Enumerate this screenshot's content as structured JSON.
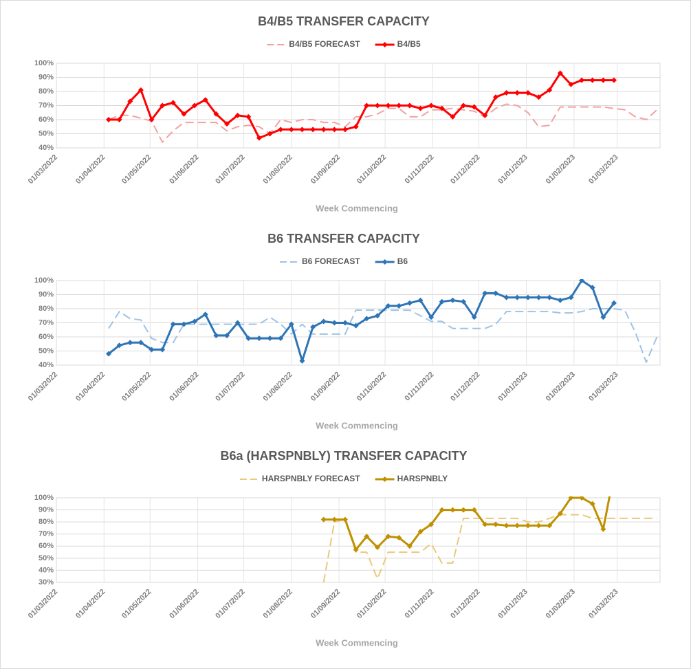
{
  "chart_data": [
    {
      "type": "line",
      "title": "B4/B5 TRANSFER CAPACITY",
      "xlabel": "Week Commencing",
      "x": [
        "2022-04-04",
        "2022-04-11",
        "2022-04-18",
        "2022-04-25",
        "2022-05-02",
        "2022-05-09",
        "2022-05-16",
        "2022-05-23",
        "2022-05-30",
        "2022-06-06",
        "2022-06-13",
        "2022-06-20",
        "2022-06-27",
        "2022-07-04",
        "2022-07-11",
        "2022-07-18",
        "2022-07-25",
        "2022-08-01",
        "2022-08-08",
        "2022-08-15",
        "2022-08-22",
        "2022-08-29",
        "2022-09-05",
        "2022-09-12",
        "2022-09-19",
        "2022-09-26",
        "2022-10-03",
        "2022-10-10",
        "2022-10-17",
        "2022-10-24",
        "2022-10-31",
        "2022-11-07",
        "2022-11-14",
        "2022-11-21",
        "2022-11-28",
        "2022-12-05",
        "2022-12-12",
        "2022-12-19",
        "2022-12-26",
        "2023-01-02",
        "2023-01-09",
        "2023-01-16",
        "2023-01-23",
        "2023-01-30",
        "2023-02-06",
        "2023-02-13",
        "2023-02-20",
        "2023-02-27",
        "2023-03-06",
        "2023-03-13",
        "2023-03-20",
        "2023-03-27"
      ],
      "xlim": [
        "2022-03-01",
        "2023-03-29"
      ],
      "xticks": [
        {
          "value": "2022-03-01",
          "label": "01/03/2022"
        },
        {
          "value": "2022-04-01",
          "label": "01/04/2022"
        },
        {
          "value": "2022-05-01",
          "label": "01/05/2022"
        },
        {
          "value": "2022-06-01",
          "label": "01/06/2022"
        },
        {
          "value": "2022-07-01",
          "label": "01/07/2022"
        },
        {
          "value": "2022-08-01",
          "label": "01/08/2022"
        },
        {
          "value": "2022-09-01",
          "label": "01/09/2022"
        },
        {
          "value": "2022-10-01",
          "label": "01/10/2022"
        },
        {
          "value": "2022-11-01",
          "label": "01/11/2022"
        },
        {
          "value": "2022-12-01",
          "label": "01/12/2022"
        },
        {
          "value": "2023-01-01",
          "label": "01/01/2023"
        },
        {
          "value": "2023-02-01",
          "label": "01/02/2023"
        },
        {
          "value": "2023-03-01",
          "label": "01/03/2023"
        }
      ],
      "ylim": [
        40,
        100
      ],
      "yticks": [
        {
          "value": 40,
          "label": "40%"
        },
        {
          "value": 50,
          "label": "50%"
        },
        {
          "value": 60,
          "label": "60%"
        },
        {
          "value": 70,
          "label": "70%"
        },
        {
          "value": 80,
          "label": "80%"
        },
        {
          "value": 90,
          "label": "90%"
        },
        {
          "value": 100,
          "label": "100%"
        }
      ],
      "grid": true,
      "legend": "top",
      "series": [
        {
          "name": "B4/B5 FORECAST",
          "color": "#f4a0a0",
          "dashed": true,
          "values": [
            60,
            63,
            63,
            61,
            59,
            44,
            52,
            58,
            58,
            58,
            58,
            52,
            55,
            56,
            55,
            50,
            60,
            58,
            60,
            60,
            58,
            58,
            55,
            62,
            62,
            64,
            68,
            68,
            62,
            62,
            67,
            67,
            68,
            67,
            66,
            62,
            68,
            71,
            70,
            65,
            55,
            56,
            69,
            69,
            69,
            69,
            69,
            68,
            67,
            62,
            60,
            67
          ]
        },
        {
          "name": "B4/B5",
          "color": "#ff0000",
          "marker": "diamond",
          "values": [
            60,
            60,
            73,
            81,
            60,
            70,
            72,
            64,
            70,
            74,
            64,
            57,
            63,
            62,
            47,
            50,
            53,
            53,
            53,
            53,
            53,
            53,
            53,
            55,
            70,
            70,
            70,
            70,
            70,
            68,
            70,
            68,
            62,
            70,
            69,
            63,
            76,
            79,
            79,
            79,
            76,
            81,
            93,
            85,
            88,
            88,
            88,
            88,
            null,
            null,
            null,
            null
          ]
        }
      ]
    },
    {
      "type": "line",
      "title": "B6 TRANSFER CAPACITY",
      "xlabel": "Week Commencing",
      "x": [
        "2022-04-04",
        "2022-04-11",
        "2022-04-18",
        "2022-04-25",
        "2022-05-02",
        "2022-05-09",
        "2022-05-16",
        "2022-05-23",
        "2022-05-30",
        "2022-06-06",
        "2022-06-13",
        "2022-06-20",
        "2022-06-27",
        "2022-07-04",
        "2022-07-11",
        "2022-07-18",
        "2022-07-25",
        "2022-08-01",
        "2022-08-08",
        "2022-08-15",
        "2022-08-22",
        "2022-08-29",
        "2022-09-05",
        "2022-09-12",
        "2022-09-19",
        "2022-09-26",
        "2022-10-03",
        "2022-10-10",
        "2022-10-17",
        "2022-10-24",
        "2022-10-31",
        "2022-11-07",
        "2022-11-14",
        "2022-11-21",
        "2022-11-28",
        "2022-12-05",
        "2022-12-12",
        "2022-12-19",
        "2022-12-26",
        "2023-01-02",
        "2023-01-09",
        "2023-01-16",
        "2023-01-23",
        "2023-01-30",
        "2023-02-06",
        "2023-02-13",
        "2023-02-20",
        "2023-02-27",
        "2023-03-06",
        "2023-03-13",
        "2023-03-20",
        "2023-03-27"
      ],
      "xlim": [
        "2022-03-01",
        "2023-03-29"
      ],
      "xticks": [
        {
          "value": "2022-03-01",
          "label": "01/03/2022"
        },
        {
          "value": "2022-04-01",
          "label": "01/04/2022"
        },
        {
          "value": "2022-05-01",
          "label": "01/05/2022"
        },
        {
          "value": "2022-06-01",
          "label": "01/06/2022"
        },
        {
          "value": "2022-07-01",
          "label": "01/07/2022"
        },
        {
          "value": "2022-08-01",
          "label": "01/08/2022"
        },
        {
          "value": "2022-09-01",
          "label": "01/09/2022"
        },
        {
          "value": "2022-10-01",
          "label": "01/10/2022"
        },
        {
          "value": "2022-11-01",
          "label": "01/11/2022"
        },
        {
          "value": "2022-12-01",
          "label": "01/12/2022"
        },
        {
          "value": "2023-01-01",
          "label": "01/01/2023"
        },
        {
          "value": "2023-02-01",
          "label": "01/02/2023"
        },
        {
          "value": "2023-03-01",
          "label": "01/03/2023"
        }
      ],
      "ylim": [
        40,
        100
      ],
      "yticks": [
        {
          "value": 40,
          "label": "40%"
        },
        {
          "value": 50,
          "label": "50%"
        },
        {
          "value": 60,
          "label": "60%"
        },
        {
          "value": 70,
          "label": "70%"
        },
        {
          "value": 80,
          "label": "80%"
        },
        {
          "value": 90,
          "label": "90%"
        },
        {
          "value": 100,
          "label": "100%"
        }
      ],
      "grid": true,
      "legend": "top",
      "series": [
        {
          "name": "B6 FORECAST",
          "color": "#9dc3e6",
          "dashed": true,
          "values": [
            66,
            78,
            73,
            72,
            59,
            56,
            56,
            69,
            69,
            69,
            69,
            69,
            69,
            69,
            69,
            74,
            69,
            62,
            69,
            62,
            62,
            62,
            62,
            79,
            79,
            79,
            79,
            79,
            79,
            75,
            71,
            71,
            66,
            66,
            66,
            66,
            69,
            78,
            78,
            78,
            78,
            78,
            77,
            77,
            78,
            80,
            80,
            80,
            79,
            63,
            42,
            60
          ]
        },
        {
          "name": "B6",
          "color": "#2e75b6",
          "marker": "diamond",
          "values": [
            48,
            54,
            56,
            56,
            51,
            51,
            69,
            69,
            71,
            76,
            61,
            61,
            70,
            59,
            59,
            59,
            59,
            69,
            43,
            67,
            71,
            70,
            70,
            68,
            73,
            75,
            82,
            82,
            84,
            86,
            74,
            85,
            86,
            85,
            74,
            91,
            91,
            88,
            88,
            88,
            88,
            88,
            86,
            88,
            100,
            95,
            74,
            84,
            null,
            null,
            null,
            null
          ]
        }
      ]
    },
    {
      "type": "line",
      "title": "B6a (HARSPNBLY) TRANSFER CAPACITY",
      "xlabel": "Week Commencing",
      "x": [
        "2022-04-04",
        "2022-04-11",
        "2022-04-18",
        "2022-04-25",
        "2022-05-02",
        "2022-05-09",
        "2022-05-16",
        "2022-05-23",
        "2022-05-30",
        "2022-06-06",
        "2022-06-13",
        "2022-06-20",
        "2022-06-27",
        "2022-07-04",
        "2022-07-11",
        "2022-07-18",
        "2022-07-25",
        "2022-08-01",
        "2022-08-08",
        "2022-08-15",
        "2022-08-22",
        "2022-08-29",
        "2022-09-05",
        "2022-09-12",
        "2022-09-19",
        "2022-09-26",
        "2022-10-03",
        "2022-10-10",
        "2022-10-17",
        "2022-10-24",
        "2022-10-31",
        "2022-11-07",
        "2022-11-14",
        "2022-11-21",
        "2022-11-28",
        "2022-12-05",
        "2022-12-12",
        "2022-12-19",
        "2022-12-26",
        "2023-01-02",
        "2023-01-09",
        "2023-01-16",
        "2023-01-23",
        "2023-01-30",
        "2023-02-06",
        "2023-02-13",
        "2023-02-20",
        "2023-02-27",
        "2023-03-06",
        "2023-03-13",
        "2023-03-20",
        "2023-03-27"
      ],
      "xlim": [
        "2022-03-01",
        "2023-03-29"
      ],
      "xticks": [
        {
          "value": "2022-03-01",
          "label": "01/03/2022"
        },
        {
          "value": "2022-04-01",
          "label": "01/04/2022"
        },
        {
          "value": "2022-05-01",
          "label": "01/05/2022"
        },
        {
          "value": "2022-06-01",
          "label": "01/06/2022"
        },
        {
          "value": "2022-07-01",
          "label": "01/07/2022"
        },
        {
          "value": "2022-08-01",
          "label": "01/08/2022"
        },
        {
          "value": "2022-09-01",
          "label": "01/09/2022"
        },
        {
          "value": "2022-10-01",
          "label": "01/10/2022"
        },
        {
          "value": "2022-11-01",
          "label": "01/11/2022"
        },
        {
          "value": "2022-12-01",
          "label": "01/12/2022"
        },
        {
          "value": "2023-01-01",
          "label": "01/01/2023"
        },
        {
          "value": "2023-02-01",
          "label": "01/02/2023"
        },
        {
          "value": "2023-03-01",
          "label": "01/03/2023"
        }
      ],
      "ylim": [
        30,
        100
      ],
      "yticks": [
        {
          "value": 30,
          "label": "30%"
        },
        {
          "value": 40,
          "label": "40%"
        },
        {
          "value": 50,
          "label": "50%"
        },
        {
          "value": 60,
          "label": "60%"
        },
        {
          "value": 70,
          "label": "70%"
        },
        {
          "value": 80,
          "label": "80%"
        },
        {
          "value": 90,
          "label": "90%"
        },
        {
          "value": 100,
          "label": "100%"
        }
      ],
      "grid": true,
      "legend": "top",
      "series": [
        {
          "name": "HARSPNBLY FORECAST",
          "color": "#e8c97a",
          "dashed": true,
          "values": [
            null,
            null,
            null,
            null,
            null,
            null,
            null,
            null,
            null,
            null,
            null,
            null,
            null,
            null,
            null,
            null,
            null,
            null,
            null,
            null,
            30,
            80,
            82,
            55,
            55,
            33,
            55,
            55,
            55,
            55,
            62,
            46,
            46,
            83,
            83,
            83,
            83,
            83,
            83,
            80,
            80,
            83,
            86,
            86,
            86,
            83,
            83,
            83,
            83,
            83,
            83,
            83
          ]
        },
        {
          "name": "HARSPNBLY",
          "color": "#bf9000",
          "marker": "diamond",
          "values": [
            null,
            null,
            null,
            null,
            null,
            null,
            null,
            null,
            null,
            null,
            null,
            null,
            null,
            null,
            null,
            null,
            null,
            null,
            null,
            null,
            82,
            82,
            82,
            57,
            68,
            59,
            68,
            67,
            60,
            72,
            78,
            90,
            90,
            90,
            90,
            78,
            78,
            77,
            77,
            77,
            77,
            77,
            87,
            100,
            100,
            95,
            74,
            120,
            null,
            null,
            null,
            null
          ]
        }
      ]
    }
  ]
}
